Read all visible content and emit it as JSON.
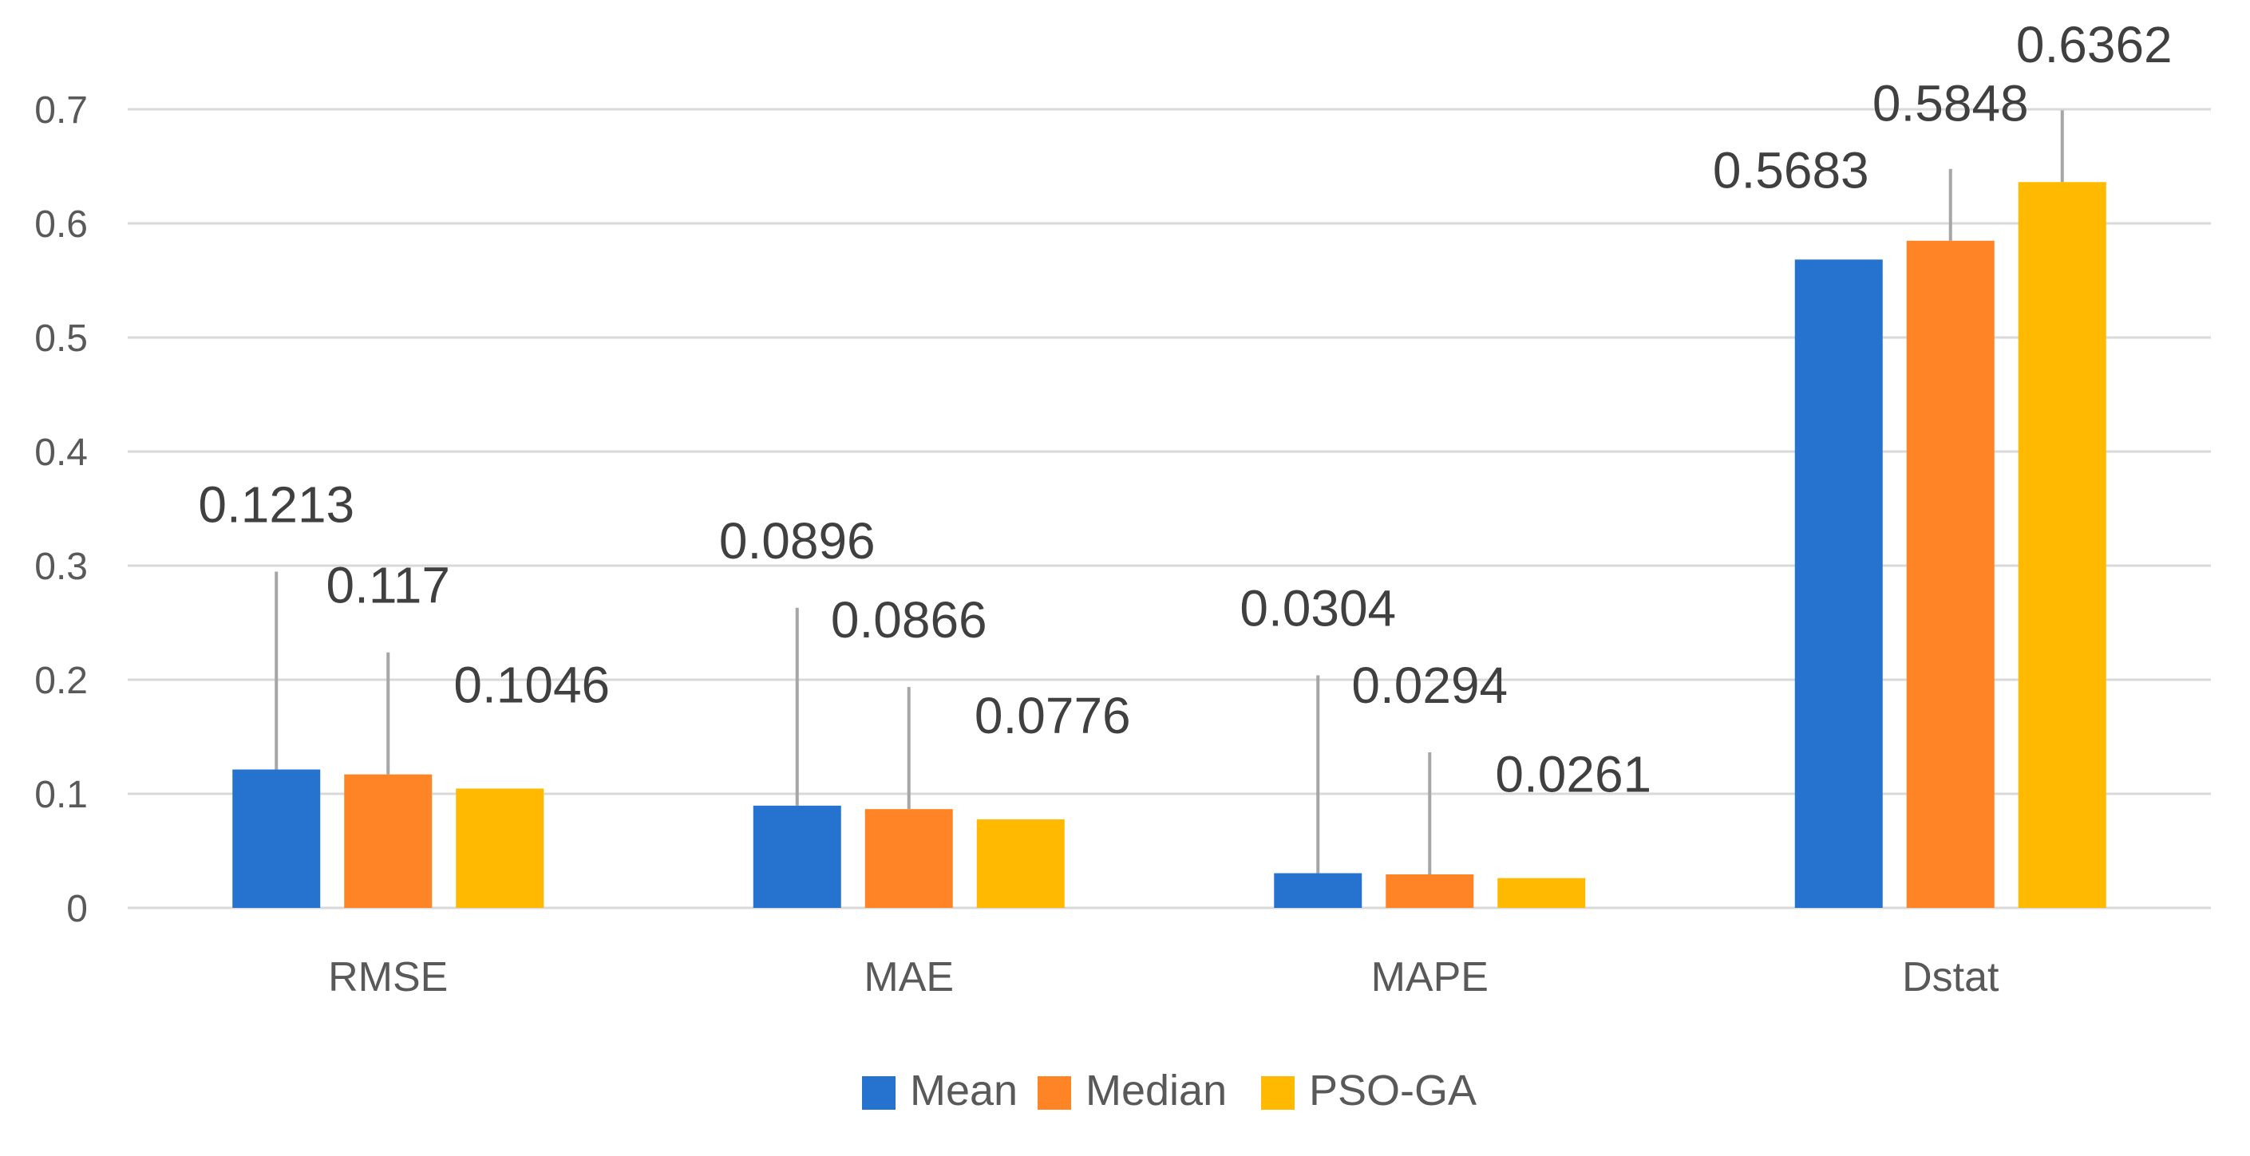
{
  "chart_data": {
    "type": "bar",
    "title": "",
    "xlabel": "",
    "ylabel": "",
    "categories": [
      "RMSE",
      "MAE",
      "MAPE",
      "Dstat"
    ],
    "series": [
      {
        "name": "Mean",
        "color": "#2672CF",
        "values": [
          0.1213,
          0.0896,
          0.0304,
          0.5683
        ]
      },
      {
        "name": "Median",
        "color": "#FF8426",
        "values": [
          0.117,
          0.0866,
          0.0294,
          0.5848
        ]
      },
      {
        "name": "PSO-GA",
        "color": "#FFBA00",
        "values": [
          0.1046,
          0.0776,
          0.0261,
          0.6362
        ]
      }
    ],
    "ylim": [
      0,
      0.7
    ],
    "yticks": [
      0,
      0.1,
      0.2,
      0.3,
      0.4,
      0.5,
      0.6,
      0.7
    ],
    "ytick_labels": [
      "0",
      "0.1",
      "0.2",
      "0.3",
      "0.4",
      "0.5",
      "0.6",
      "0.7"
    ],
    "data_labels": [
      [
        "0.1213",
        "0.117",
        "0.1046"
      ],
      [
        "0.0896",
        "0.0866",
        "0.0776"
      ],
      [
        "0.0304",
        "0.0294",
        "0.0261"
      ],
      [
        "0.5683",
        "0.5848",
        "0.6362"
      ]
    ],
    "grid": true,
    "legend_position": "bottom"
  }
}
